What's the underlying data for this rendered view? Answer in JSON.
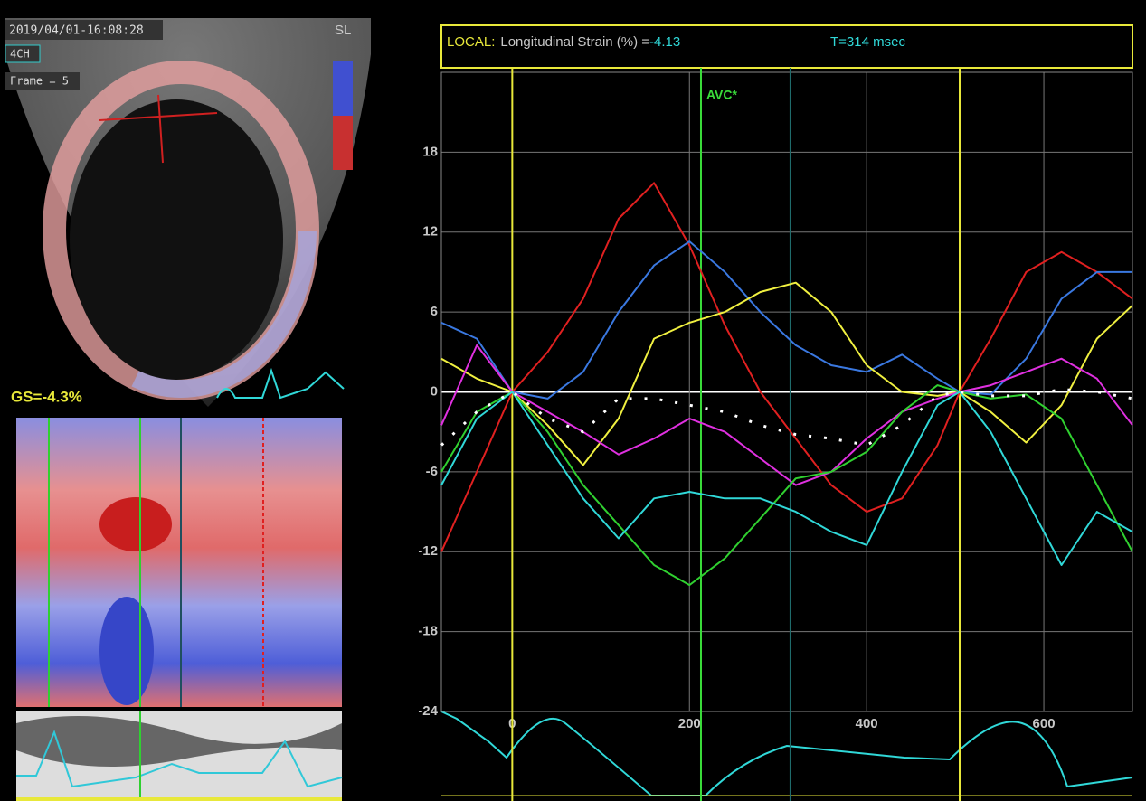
{
  "left_panel": {
    "timestamp": "2019/04/01-16:08:28",
    "view": "4CH",
    "frame": "Frame = 5",
    "scale_label": "SL",
    "global_strain": "GS=-4.3%"
  },
  "chart_data": {
    "type": "line",
    "title": "LOCAL:",
    "measure_label": "Longitudinal Strain (%) =",
    "measure_value": "-4.13",
    "time_label": "T=314 msec",
    "x": [
      -80,
      -40,
      0,
      40,
      80,
      120,
      160,
      200,
      240,
      280,
      320,
      360,
      400,
      440,
      480,
      505,
      540,
      580,
      620,
      660,
      700
    ],
    "series": [
      {
        "color": "#e02020",
        "values": [
          -12,
          -6,
          0,
          3,
          7,
          13,
          15.7,
          11,
          5,
          0,
          -3.5,
          -7,
          -9,
          -8,
          -4,
          0,
          4,
          9,
          10.5,
          9,
          7
        ]
      },
      {
        "color": "#3a78e0",
        "values": [
          5.2,
          4,
          0,
          -0.5,
          1.5,
          6,
          9.5,
          11.3,
          9,
          6,
          3.5,
          2,
          1.5,
          2.8,
          1,
          0,
          -0.2,
          2.5,
          7,
          9,
          9
        ]
      },
      {
        "color": "#f0f040",
        "values": [
          2.5,
          1,
          0,
          -2.5,
          -5.5,
          -2,
          4,
          5.2,
          6,
          7.5,
          8.2,
          6,
          2,
          0,
          -0.3,
          0,
          -1.5,
          -3.8,
          -1,
          4,
          6.5
        ]
      },
      {
        "color": "#e030e0",
        "values": [
          -2.5,
          3.5,
          0,
          -1.5,
          -3,
          -4.7,
          -3.5,
          -2,
          -3,
          -5,
          -7,
          -6,
          -3.5,
          -1.5,
          -0.5,
          0,
          0.5,
          1.5,
          2.5,
          1,
          -2.5
        ]
      },
      {
        "color": "#30d030",
        "values": [
          -6,
          -1.5,
          0,
          -3,
          -7,
          -10,
          -13,
          -14.5,
          -12.5,
          -9.5,
          -6.5,
          -6,
          -4.5,
          -1.5,
          0.5,
          0,
          -0.5,
          -0.2,
          -2,
          -7,
          -12
        ]
      },
      {
        "color": "#30d8d8",
        "values": [
          -7,
          -2,
          0,
          -4,
          -8,
          -11,
          -8,
          -7.5,
          -8,
          -8,
          -9,
          -10.5,
          -11.5,
          -6,
          -1,
          0,
          -3,
          -8,
          -13,
          -9,
          -10.5
        ]
      },
      {
        "color": "#ffffff",
        "dash": "dotted",
        "values": [
          -4,
          -1.5,
          0,
          -2,
          -3,
          -0.5,
          -0.5,
          -1,
          -1.5,
          -2.5,
          -3.2,
          -3.5,
          -4,
          -2.5,
          -0.3,
          0,
          -0.3,
          -0.3,
          0.2,
          0,
          -0.5
        ]
      }
    ],
    "markers": [
      {
        "x": 0,
        "color": "#e8e83a"
      },
      {
        "x": 213,
        "color": "#3adc3a",
        "label": "AVC*"
      },
      {
        "x": 314,
        "color": "#1f6b6b"
      },
      {
        "x": 505,
        "color": "#e8e83a"
      }
    ],
    "xlim": [
      -80,
      700
    ],
    "xticks": [
      0,
      200,
      400,
      600
    ],
    "ylim": [
      -24,
      24
    ],
    "yticks": [
      -24,
      -18,
      -12,
      -6,
      0,
      6,
      12,
      18
    ],
    "grid": true
  }
}
